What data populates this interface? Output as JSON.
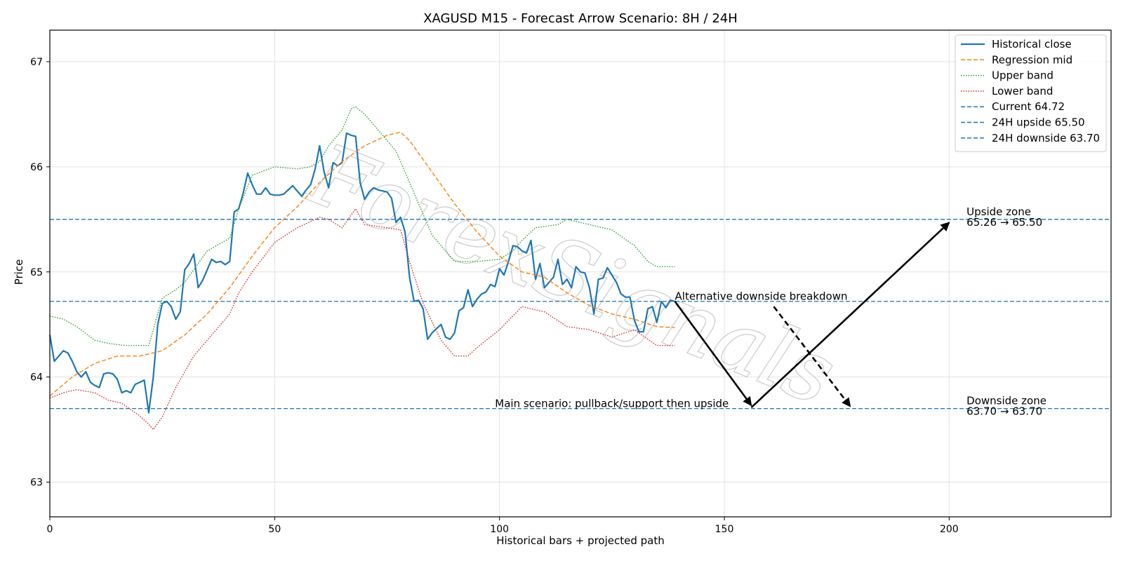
{
  "chart_data": {
    "type": "line",
    "title": "XAGUSD M15 - Forecast Arrow Scenario: 8H / 24H",
    "xlabel": "Historical bars + projected path",
    "ylabel": "Price",
    "xlim": [
      0,
      236
    ],
    "ylim": [
      62.67,
      67.3
    ],
    "grid": true,
    "legend_placement": "top-right",
    "x_ticks": [
      0,
      50,
      100,
      150,
      200
    ],
    "y_ticks": [
      63,
      64,
      65,
      66,
      67
    ],
    "series": [
      {
        "name": "Historical close",
        "style": "solid",
        "color": "#1f77b4",
        "x": [
          0,
          1,
          2,
          3,
          4,
          5,
          6,
          7,
          8,
          9,
          10,
          11,
          12,
          13,
          14,
          15,
          16,
          17,
          18,
          19,
          20,
          21,
          22,
          23,
          24,
          25,
          26,
          27,
          28,
          29,
          30,
          31,
          32,
          33,
          34,
          35,
          36,
          37,
          38,
          39,
          40,
          41,
          42,
          43,
          44,
          45,
          46,
          47,
          48,
          49,
          50,
          51,
          52,
          53,
          54,
          55,
          56,
          57,
          58,
          59,
          60,
          61,
          62,
          63,
          64,
          65,
          66,
          67,
          68,
          69,
          70,
          71,
          72,
          73,
          74,
          75,
          76,
          77,
          78,
          79,
          80,
          81,
          82,
          83,
          84,
          85,
          86,
          87,
          88,
          89,
          90,
          91,
          92,
          93,
          94,
          95,
          96,
          97,
          98,
          99,
          100,
          101,
          102,
          103,
          104,
          105,
          106,
          107,
          108,
          109,
          110,
          111,
          112,
          113,
          114,
          115,
          116,
          117,
          118,
          119,
          120,
          121,
          122,
          123,
          124,
          125,
          126,
          127,
          128,
          129,
          130,
          131,
          132,
          133,
          134,
          135,
          136,
          137,
          138,
          139
        ],
        "y": [
          64.4,
          64.15,
          64.2,
          64.25,
          64.23,
          64.15,
          64.05,
          64.0,
          64.05,
          63.95,
          63.92,
          63.9,
          64.03,
          64.04,
          64.03,
          63.98,
          63.85,
          63.87,
          63.85,
          63.93,
          63.95,
          63.97,
          63.66,
          64.0,
          64.5,
          64.7,
          64.72,
          64.67,
          64.55,
          64.62,
          65.02,
          65.08,
          65.17,
          64.85,
          64.92,
          65.02,
          65.12,
          65.09,
          65.1,
          65.07,
          65.1,
          65.57,
          65.6,
          65.75,
          65.94,
          65.83,
          65.74,
          65.74,
          65.8,
          65.74,
          65.73,
          65.73,
          65.74,
          65.78,
          65.82,
          65.77,
          65.72,
          65.78,
          65.83,
          65.98,
          66.2,
          65.95,
          65.8,
          66.04,
          66.01,
          66.04,
          66.32,
          66.3,
          66.29,
          65.85,
          65.69,
          65.76,
          65.8,
          65.78,
          65.77,
          65.76,
          65.7,
          65.47,
          65.52,
          65.38,
          64.95,
          64.72,
          64.73,
          64.65,
          64.36,
          64.42,
          64.46,
          64.5,
          64.38,
          64.36,
          64.42,
          64.63,
          64.66,
          64.83,
          64.67,
          64.74,
          64.79,
          64.81,
          64.88,
          64.86,
          65.03,
          64.97,
          65.1,
          65.25,
          65.24,
          65.2,
          65.18,
          65.3,
          64.93,
          65.08,
          64.85,
          64.9,
          64.95,
          65.12,
          64.88,
          64.93,
          64.85,
          65.05,
          65.0,
          64.99,
          64.85,
          64.6,
          64.93,
          64.94,
          65.04,
          64.97,
          64.9,
          64.79,
          64.76,
          64.76,
          64.54,
          64.43,
          64.43,
          64.65,
          64.67,
          64.52,
          64.72,
          64.66,
          64.73,
          64.72
        ]
      },
      {
        "name": "Regression mid",
        "style": "dashed",
        "color": "#ff7f0e",
        "x": [
          0,
          5,
          10,
          15,
          20,
          25,
          30,
          35,
          40,
          45,
          50,
          55,
          60,
          65,
          70,
          75,
          78,
          80,
          85,
          90,
          95,
          100,
          105,
          110,
          115,
          120,
          125,
          130,
          135,
          139
        ],
        "y": [
          63.82,
          64.0,
          64.13,
          64.2,
          64.2,
          64.25,
          64.4,
          64.6,
          64.85,
          65.15,
          65.42,
          65.62,
          65.85,
          66.05,
          66.2,
          66.3,
          66.33,
          66.25,
          65.95,
          65.65,
          65.38,
          65.15,
          65.0,
          64.95,
          64.8,
          64.68,
          64.6,
          64.55,
          64.48,
          64.47
        ]
      },
      {
        "name": "Upper band",
        "style": "dotted",
        "color": "#2ca02c",
        "x": [
          0,
          3,
          6,
          10,
          13,
          17,
          20,
          22,
          25,
          28,
          30,
          35,
          40,
          42,
          45,
          50,
          55,
          58,
          60,
          62,
          65,
          67,
          68,
          70,
          73,
          77,
          80,
          85,
          90,
          95,
          100,
          103,
          105,
          108,
          113,
          115,
          120,
          125,
          130,
          133,
          135,
          139
        ],
        "y": [
          64.58,
          64.55,
          64.48,
          64.35,
          64.32,
          64.3,
          64.3,
          64.3,
          64.75,
          64.83,
          64.9,
          65.2,
          65.32,
          65.6,
          65.92,
          66.0,
          65.98,
          66.0,
          66.05,
          66.2,
          66.35,
          66.55,
          66.57,
          66.5,
          66.35,
          66.15,
          65.85,
          65.35,
          65.1,
          65.1,
          65.12,
          65.2,
          65.3,
          65.42,
          65.45,
          65.5,
          65.45,
          65.4,
          65.25,
          65.1,
          65.05,
          65.05
        ]
      },
      {
        "name": "Lower band",
        "style": "dotted",
        "color": "#d62728",
        "x": [
          0,
          3,
          6,
          10,
          13,
          16,
          20,
          22,
          23,
          25,
          28,
          32,
          35,
          40,
          42,
          45,
          50,
          55,
          60,
          62,
          65,
          68,
          70,
          75,
          78,
          80,
          83,
          87,
          90,
          93,
          95,
          100,
          105,
          110,
          115,
          120,
          125,
          130,
          135,
          139
        ],
        "y": [
          63.8,
          63.85,
          63.88,
          63.85,
          63.78,
          63.75,
          63.63,
          63.55,
          63.5,
          63.62,
          63.9,
          64.2,
          64.35,
          64.6,
          64.8,
          65.0,
          65.28,
          65.42,
          65.52,
          65.5,
          65.42,
          65.6,
          65.45,
          65.42,
          65.4,
          65.1,
          64.7,
          64.35,
          64.2,
          64.2,
          64.28,
          64.45,
          64.67,
          64.62,
          64.48,
          64.45,
          64.38,
          64.45,
          64.3,
          64.3
        ]
      }
    ],
    "reference_lines": [
      {
        "name": "Current 64.72",
        "y": 64.72,
        "color": "#1f77b4"
      },
      {
        "name": "24H upside 65.50",
        "y": 65.5,
        "color": "#1f77b4"
      },
      {
        "name": "24H downside 63.70",
        "y": 63.7,
        "color": "#1f77b4"
      }
    ],
    "arrows": [
      {
        "from": [
          139,
          64.72
        ],
        "to": [
          156,
          63.73
        ],
        "style": "solid"
      },
      {
        "from": [
          156,
          63.71
        ],
        "to": [
          200,
          65.47
        ],
        "style": "solid"
      },
      {
        "from": [
          161,
          64.67
        ],
        "to": [
          178,
          63.72
        ],
        "style": "dashed"
      }
    ],
    "annotations": [
      {
        "text": "Alternative downside breakdown",
        "x": 139,
        "y": 64.72
      },
      {
        "text": "Main scenario: pullback/support then upside",
        "x": 99,
        "y": 63.7
      },
      {
        "text": "Upside zone",
        "x": 202,
        "y": 65.5
      },
      {
        "text": "65.26 → 65.50",
        "x": 202,
        "y": 65.5
      },
      {
        "text": "Downside zone",
        "x": 202,
        "y": 63.7
      },
      {
        "text": "63.70 → 63.70",
        "x": 202,
        "y": 63.7
      }
    ],
    "watermark": "ForexSignals"
  }
}
